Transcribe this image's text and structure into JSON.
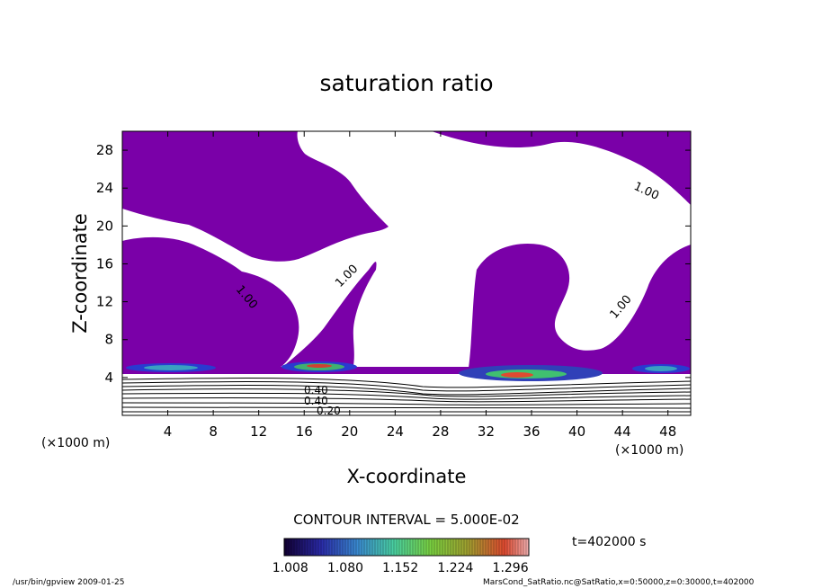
{
  "chart_data": {
    "type": "contour",
    "title": "saturation ratio",
    "xlabel": "X-coordinate",
    "ylabel": "Z-coordinate",
    "x_unit": "(×1000 m)",
    "y_unit": "(×1000 m)",
    "xlim": [
      0,
      50
    ],
    "ylim": [
      0,
      30
    ],
    "x_ticks": [
      "4",
      "8",
      "12",
      "16",
      "20",
      "24",
      "28",
      "32",
      "36",
      "40",
      "44",
      "48"
    ],
    "y_ticks": [
      "4",
      "8",
      "12",
      "16",
      "20",
      "24",
      "28"
    ],
    "contour_labels": [
      "1.00",
      "1.00",
      "1.00",
      "1.00",
      "0.40",
      "0.40",
      "0.20"
    ],
    "contour_interval": "CONTOUR INTERVAL = 5.000E-02",
    "colorbar": {
      "ticks": [
        "1.008",
        "1.080",
        "1.152",
        "1.224",
        "1.296"
      ],
      "range": [
        1.0,
        1.32
      ]
    },
    "time_label": "t=402000 s",
    "colors": {
      "saturated_fill": "#7a00a8",
      "background": "#ffffff"
    }
  },
  "footer": {
    "left": "/usr/bin/gpview  2009-01-25",
    "right": "MarsCond_SatRatio.nc@SatRatio,x=0:50000,z=0:30000,t=402000"
  }
}
